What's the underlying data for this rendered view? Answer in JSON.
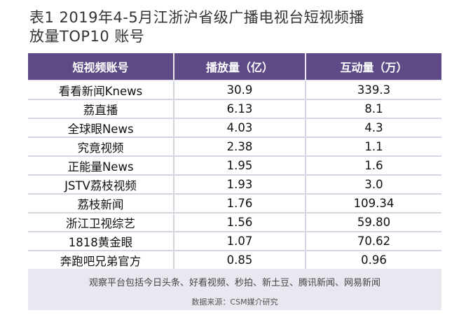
{
  "title": {
    "line1": "表1  2019年4-5月江浙沪省级广播电视台短视频播",
    "line2": "放量TOP10  账号"
  },
  "table": {
    "headers": [
      "短视频账号",
      "播放量（亿）",
      "互动量（万）"
    ],
    "rows": [
      [
        "看看新闻Knews",
        "30.9",
        "339.3"
      ],
      [
        "荔直播",
        "6.13",
        "8.1"
      ],
      [
        "全球眼News",
        "4.03",
        "4.3"
      ],
      [
        "究竟视频",
        "2.38",
        "1.1"
      ],
      [
        "正能量News",
        "1.95",
        "1.6"
      ],
      [
        "JSTV荔枝视频",
        "1.93",
        "3.0"
      ],
      [
        "荔枝新闻",
        "1.76",
        "109.34"
      ],
      [
        "浙江卫视综艺",
        "1.56",
        "59.80"
      ],
      [
        "1818黄金眼",
        "1.07",
        "70.62"
      ],
      [
        "奔跑吧兄弟官方",
        "0.85",
        "0.96"
      ]
    ]
  },
  "note": "观察平台包括今日头条、好看视频、秒拍、新土豆、腾讯新闻、网易新闻",
  "source": "数据来源：CSM媒介研究",
  "colors": {
    "header_bg": "#5d4a86",
    "panel_bg": "#e9e7ef",
    "header_text": "#ffffff"
  }
}
